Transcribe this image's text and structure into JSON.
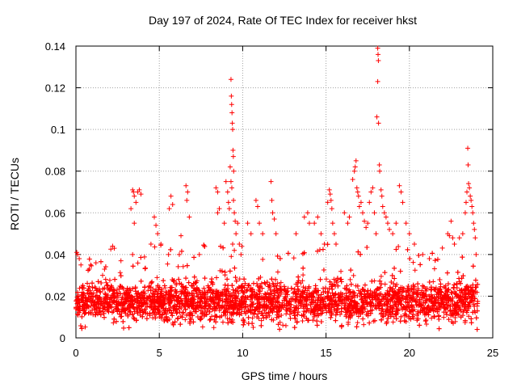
{
  "chart_data": {
    "type": "scatter",
    "title": "Day 197 of 2024, Rate Of TEC Index for receiver hkst",
    "xlabel": "GPS time / hours",
    "ylabel": "ROTI / TECUs",
    "xlim": [
      0,
      25
    ],
    "ylim": [
      0,
      0.14
    ],
    "xticks": [
      0,
      5,
      10,
      15,
      20,
      25
    ],
    "yticks": [
      0,
      0.02,
      0.04,
      0.06,
      0.08,
      0.1,
      0.12,
      0.14
    ],
    "xtick_labels": [
      "0",
      "5",
      "10",
      "15",
      "20",
      "25"
    ],
    "ytick_labels": [
      "0",
      "0.02",
      "0.04",
      "0.06",
      "0.08",
      "0.1",
      "0.12",
      "0.14"
    ],
    "grid": true,
    "marker": "+",
    "color": "#ff0000",
    "series": [
      {
        "name": "ROTI",
        "baseline": {
          "x_range": [
            0,
            24.1
          ],
          "median": 0.013,
          "band": [
            0.004,
            0.03
          ]
        },
        "points": [
          [
            0.05,
            0.041
          ],
          [
            0.1,
            0.04
          ],
          [
            0.2,
            0.038
          ],
          [
            0.3,
            0.035
          ],
          [
            0.8,
            0.033
          ],
          [
            1.2,
            0.036
          ],
          [
            1.6,
            0.03
          ],
          [
            2.2,
            0.044
          ],
          [
            2.3,
            0.043
          ],
          [
            2.7,
            0.037
          ],
          [
            3.4,
            0.071
          ],
          [
            3.45,
            0.07
          ],
          [
            3.5,
            0.068
          ],
          [
            3.3,
            0.062
          ],
          [
            3.6,
            0.065
          ],
          [
            3.7,
            0.07
          ],
          [
            3.8,
            0.071
          ],
          [
            3.9,
            0.069
          ],
          [
            3.5,
            0.055
          ],
          [
            3.4,
            0.04
          ],
          [
            4.7,
            0.058
          ],
          [
            4.8,
            0.054
          ],
          [
            4.9,
            0.05
          ],
          [
            4.5,
            0.045
          ],
          [
            5.1,
            0.045
          ],
          [
            5.6,
            0.062
          ],
          [
            5.7,
            0.068
          ],
          [
            5.8,
            0.064
          ],
          [
            6.3,
            0.049
          ],
          [
            6.2,
            0.04
          ],
          [
            6.6,
            0.073
          ],
          [
            6.7,
            0.07
          ],
          [
            6.65,
            0.066
          ],
          [
            6.8,
            0.058
          ],
          [
            7.4,
            0.04
          ],
          [
            8.4,
            0.072
          ],
          [
            8.5,
            0.07
          ],
          [
            8.6,
            0.062
          ],
          [
            8.5,
            0.06
          ],
          [
            8.9,
            0.055
          ],
          [
            9.0,
            0.075
          ],
          [
            9.1,
            0.07
          ],
          [
            9.15,
            0.065
          ],
          [
            9.2,
            0.062
          ],
          [
            9.25,
            0.082
          ],
          [
            9.3,
            0.124
          ],
          [
            9.32,
            0.116
          ],
          [
            9.34,
            0.112
          ],
          [
            9.36,
            0.108
          ],
          [
            9.38,
            0.103
          ],
          [
            9.4,
            0.1
          ],
          [
            9.42,
            0.09
          ],
          [
            9.44,
            0.087
          ],
          [
            9.46,
            0.08
          ],
          [
            9.3,
            0.075
          ],
          [
            9.35,
            0.072
          ],
          [
            9.45,
            0.066
          ],
          [
            9.5,
            0.06
          ],
          [
            9.55,
            0.056
          ],
          [
            9.6,
            0.05
          ],
          [
            9.7,
            0.055
          ],
          [
            9.8,
            0.045
          ],
          [
            9.9,
            0.04
          ],
          [
            9.4,
            0.045
          ],
          [
            9.5,
            0.042
          ],
          [
            10.3,
            0.055
          ],
          [
            10.5,
            0.05
          ],
          [
            10.8,
            0.066
          ],
          [
            10.9,
            0.063
          ],
          [
            11.0,
            0.055
          ],
          [
            11.2,
            0.05
          ],
          [
            11.7,
            0.075
          ],
          [
            11.75,
            0.066
          ],
          [
            11.8,
            0.06
          ],
          [
            11.9,
            0.057
          ],
          [
            12.0,
            0.05
          ],
          [
            13.2,
            0.05
          ],
          [
            13.7,
            0.058
          ],
          [
            13.9,
            0.06
          ],
          [
            14.0,
            0.055
          ],
          [
            14.3,
            0.055
          ],
          [
            14.5,
            0.058
          ],
          [
            14.7,
            0.05
          ],
          [
            14.9,
            0.045
          ],
          [
            15.1,
            0.065
          ],
          [
            15.2,
            0.071
          ],
          [
            15.25,
            0.069
          ],
          [
            15.3,
            0.066
          ],
          [
            15.35,
            0.062
          ],
          [
            15.4,
            0.055
          ],
          [
            15.5,
            0.05
          ],
          [
            15.6,
            0.045
          ],
          [
            16.1,
            0.06
          ],
          [
            16.3,
            0.055
          ],
          [
            16.4,
            0.058
          ],
          [
            16.6,
            0.076
          ],
          [
            16.7,
            0.08
          ],
          [
            16.75,
            0.082
          ],
          [
            16.8,
            0.085
          ],
          [
            16.85,
            0.072
          ],
          [
            16.9,
            0.07
          ],
          [
            16.95,
            0.068
          ],
          [
            17.0,
            0.063
          ],
          [
            17.1,
            0.065
          ],
          [
            17.2,
            0.06
          ],
          [
            17.3,
            0.056
          ],
          [
            17.4,
            0.053
          ],
          [
            17.5,
            0.055
          ],
          [
            17.6,
            0.065
          ],
          [
            17.7,
            0.07
          ],
          [
            17.8,
            0.072
          ],
          [
            17.9,
            0.06
          ],
          [
            18.0,
            0.05
          ],
          [
            18.1,
            0.139
          ],
          [
            18.12,
            0.136
          ],
          [
            18.14,
            0.133
          ],
          [
            18.1,
            0.123
          ],
          [
            18.05,
            0.106
          ],
          [
            18.15,
            0.103
          ],
          [
            18.2,
            0.083
          ],
          [
            18.22,
            0.08
          ],
          [
            18.3,
            0.071
          ],
          [
            18.35,
            0.068
          ],
          [
            18.4,
            0.063
          ],
          [
            18.5,
            0.06
          ],
          [
            18.6,
            0.058
          ],
          [
            18.7,
            0.055
          ],
          [
            18.8,
            0.052
          ],
          [
            19.0,
            0.05
          ],
          [
            19.2,
            0.055
          ],
          [
            19.4,
            0.073
          ],
          [
            19.5,
            0.07
          ],
          [
            19.6,
            0.065
          ],
          [
            19.8,
            0.055
          ],
          [
            20.0,
            0.05
          ],
          [
            20.3,
            0.045
          ],
          [
            20.8,
            0.04
          ],
          [
            21.2,
            0.038
          ],
          [
            22.3,
            0.05
          ],
          [
            22.4,
            0.049
          ],
          [
            22.5,
            0.056
          ],
          [
            22.6,
            0.048
          ],
          [
            22.7,
            0.045
          ],
          [
            23.0,
            0.048
          ],
          [
            23.2,
            0.05
          ],
          [
            23.35,
            0.06
          ],
          [
            23.4,
            0.065
          ],
          [
            23.45,
            0.07
          ],
          [
            23.5,
            0.091
          ],
          [
            23.52,
            0.083
          ],
          [
            23.55,
            0.074
          ],
          [
            23.6,
            0.072
          ],
          [
            23.65,
            0.068
          ],
          [
            23.7,
            0.066
          ],
          [
            23.75,
            0.063
          ],
          [
            23.8,
            0.06
          ],
          [
            23.85,
            0.055
          ],
          [
            23.9,
            0.052
          ],
          [
            23.95,
            0.048
          ],
          [
            24.0,
            0.04
          ]
        ]
      }
    ]
  }
}
